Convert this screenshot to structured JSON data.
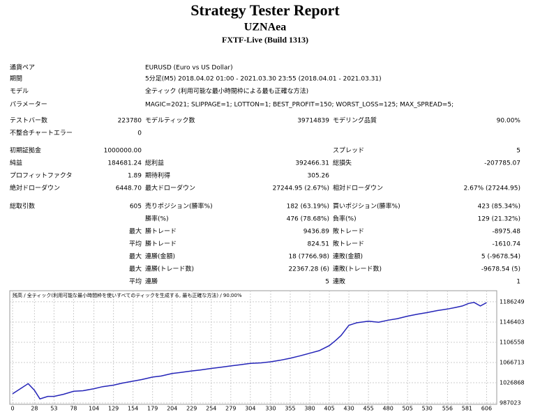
{
  "header": {
    "title": "Strategy Tester Report",
    "subtitle": "UZNAea",
    "server": "FXTF-Live (Build 1313)"
  },
  "rows": [
    {
      "l1": "通貨ペア",
      "w": "EURUSD (Euro vs US Dollar)"
    },
    {
      "l1": "期間",
      "w": "5分足(M5) 2018.04.02 01:00 - 2021.03.30 23:55 (2018.04.01 - 2021.03.31)"
    },
    {
      "l1": "モデル",
      "w": "全ティック (利用可能な最小時間枠による最も正確な方法)"
    },
    {
      "l1": "パラメーター",
      "w": "MAGIC=2021; SLIPPAGE=1; LOTTON=1; BEST_PROFIT=150; WORST_LOSS=125; MAX_SPREAD=5;"
    },
    {
      "l1": "テストバー数",
      "v1": "223780",
      "l2": "モデルティック数",
      "v2": "39714839",
      "l3": "モデリング品質",
      "v3": "90.00%"
    },
    {
      "l1": "不整合チャートエラー",
      "v1": "0"
    },
    {
      "l1": "初期証拠金",
      "v1": "1000000.00",
      "l3": "スプレッド",
      "v3": "5"
    },
    {
      "l1": "純益",
      "v1": "184681.24",
      "l2": "総利益",
      "v2": "392466.31",
      "l3": "総損失",
      "v3": "-207785.07"
    },
    {
      "l1": "プロフィットファクタ",
      "v1": "1.89",
      "l2": "期待利得",
      "v2": "305.26"
    },
    {
      "l1": "絶対ドローダウン",
      "v1": "6448.70",
      "l2": "最大ドローダウン",
      "v2": "27244.95 (2.67%)",
      "l3": "相対ドローダウン",
      "v3": "2.67% (27244.95)"
    },
    {
      "l1": "総取引数",
      "v1": "605",
      "l2": "売りポジション(勝率%)",
      "v2": "182 (63.19%)",
      "l3": "買いポジション(勝率%)",
      "v3": "423 (85.34%)"
    },
    {
      "l2": "勝率(%)",
      "v2": "476 (78.68%)",
      "l3": "負率(%)",
      "v3": "129 (21.32%)"
    },
    {
      "v1": "最大",
      "l2": "勝トレード",
      "v2": "9436.89",
      "l3": "敗トレード",
      "v3": "-8975.48"
    },
    {
      "v1": "平均",
      "l2": "勝トレード",
      "v2": "824.51",
      "l3": "敗トレード",
      "v3": "-1610.74"
    },
    {
      "v1": "最大",
      "l2": "連勝(金額)",
      "v2": "18 (7766.98)",
      "l3": "連敗(金額)",
      "v3": "5 (-9678.54)"
    },
    {
      "v1": "最大",
      "l2": "連勝(トレード数)",
      "v2": "22367.28 (6)",
      "l3": "連敗(トレード数)",
      "v3": "-9678.54 (5)"
    },
    {
      "v1": "平均",
      "l2": "連勝",
      "v2": "5",
      "l3": "連敗",
      "v3": "1"
    }
  ],
  "chart_data": {
    "type": "line",
    "title": "残高 / 全ティック(利用可能な最小時間枠を使いすべてのティックを生成する, 最も正確な方法) / 90.00%",
    "x": [
      0,
      10,
      20,
      28,
      35,
      45,
      53,
      65,
      78,
      90,
      104,
      115,
      129,
      140,
      154,
      165,
      179,
      190,
      204,
      215,
      229,
      240,
      254,
      265,
      279,
      290,
      304,
      318,
      330,
      342,
      355,
      368,
      380,
      392,
      405,
      413,
      420,
      426,
      430,
      440,
      455,
      468,
      480,
      492,
      505,
      518,
      530,
      543,
      556,
      566,
      575,
      583,
      590,
      598,
      606
    ],
    "values": [
      1005000,
      1015000,
      1025000,
      1012000,
      995000,
      1000000,
      1000000,
      1004000,
      1010000,
      1011000,
      1015000,
      1019000,
      1022000,
      1026000,
      1030000,
      1033000,
      1038000,
      1040000,
      1045000,
      1047000,
      1050000,
      1052000,
      1055000,
      1057000,
      1060000,
      1062000,
      1065000,
      1066000,
      1068000,
      1071000,
      1075000,
      1080000,
      1085000,
      1090000,
      1100000,
      1110000,
      1120000,
      1132000,
      1140000,
      1145000,
      1148000,
      1146000,
      1150000,
      1153000,
      1158000,
      1162000,
      1165000,
      1169000,
      1172000,
      1175000,
      1178000,
      1183000,
      1185000,
      1178000,
      1184681
    ],
    "color": "#2424b8",
    "xlim": [
      0,
      619
    ],
    "xticks": [
      0,
      28,
      53,
      78,
      104,
      129,
      154,
      179,
      204,
      229,
      254,
      279,
      304,
      330,
      355,
      380,
      405,
      430,
      455,
      480,
      505,
      530,
      556,
      581,
      606
    ],
    "ylim": [
      987023,
      1204000
    ],
    "yticks": [
      987023,
      1026868,
      1066713,
      1106558,
      1146403,
      1186249
    ],
    "grid": true
  }
}
